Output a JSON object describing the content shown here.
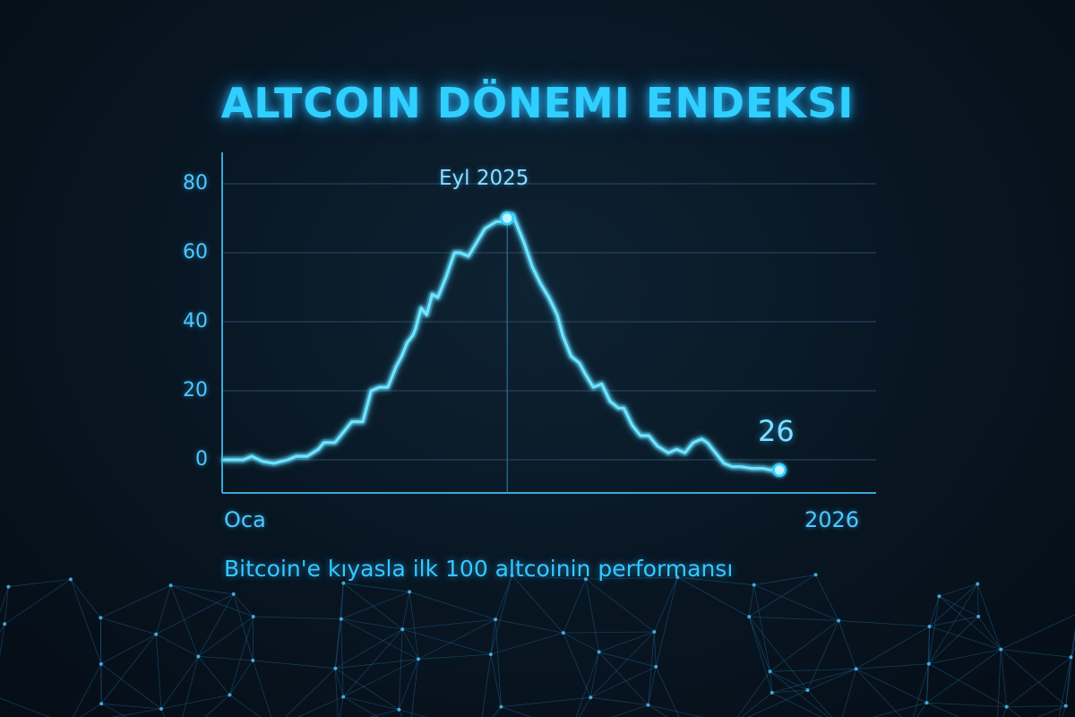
{
  "title": "ALTCOIN DÖNEMI ENDEKSI",
  "subtitle": "Bitcoin'e kıyasla ilk 100 altcoinin performansı",
  "colors": {
    "accent": "#2fd0ff",
    "line": "#3fd6ff",
    "grid": "#2a4a66",
    "axis": "#3aa7d6",
    "background": "#081521"
  },
  "chart_data": {
    "type": "line",
    "title": "ALTCOIN DÖNEMI ENDEKSI",
    "subtitle": "Bitcoin'e kıyasla ilk 100 altcoinin performansı",
    "x_tick_labels": [
      "Oca",
      "2026"
    ],
    "y_ticks": [
      0,
      20,
      40,
      60,
      80
    ],
    "ylim": [
      -9,
      88
    ],
    "grid": true,
    "annotations": [
      {
        "text": "Eyl 2025",
        "x": 51,
        "y": 70
      },
      {
        "text": "26",
        "x": 100,
        "y": -3
      }
    ],
    "series": [
      {
        "x": [
          0,
          2.5,
          3.5,
          5,
          7,
          9,
          11.5,
          13,
          15,
          17,
          18,
          20,
          21.5,
          23,
          25,
          26.5,
          28,
          29.5,
          31,
          32,
          33,
          34,
          34.5,
          35.5,
          36.5,
          37.5,
          38.5,
          40,
          41.5,
          42.5,
          44,
          45.5,
          47,
          48,
          49,
          50,
          51,
          51.5,
          52,
          53,
          54,
          55.5,
          57,
          58.5,
          60,
          61,
          62.5,
          64,
          65,
          66.5,
          68,
          69.5,
          71,
          72,
          73.5,
          75,
          76.5,
          78,
          80,
          81.5,
          83,
          84.5,
          86,
          87,
          88.5,
          90,
          91.5,
          93,
          95,
          97,
          98.5,
          100
        ],
        "y": [
          0,
          0,
          0,
          1,
          -0.5,
          -1,
          0,
          1,
          1,
          3,
          5,
          5,
          8,
          11,
          11,
          20,
          21,
          21,
          27,
          30,
          34,
          36,
          38,
          44,
          42,
          48,
          47,
          53,
          60,
          60,
          59,
          63,
          67,
          68,
          69,
          69,
          70,
          70,
          71,
          67,
          63,
          56,
          51,
          47,
          42,
          36,
          30,
          28,
          25,
          21,
          22,
          17,
          15,
          15,
          10,
          7,
          7,
          4,
          2,
          3,
          2,
          5,
          6,
          5,
          2,
          -1,
          -2,
          -2,
          -2.5,
          -2.5,
          -3,
          -3
        ]
      }
    ]
  }
}
